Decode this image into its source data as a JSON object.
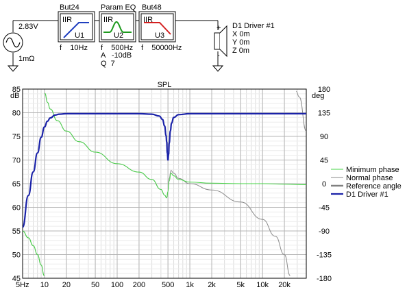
{
  "schematic": {
    "source": {
      "voltage": "2.83V",
      "resistance": "1mΩ"
    },
    "blocks": [
      {
        "title": "But24",
        "type": "IIR",
        "ref": "U1",
        "params": [
          "f    10Hz"
        ],
        "curve_color": "#1f3fbf",
        "shape": "highpass"
      },
      {
        "title": "Param EQ",
        "type": "IIR",
        "ref": "U2",
        "params": [
          "f    500Hz",
          "A   -10dB",
          "Q  7"
        ],
        "curve_color": "#1e9a1e",
        "shape": "peak"
      },
      {
        "title": "But48",
        "type": "IIR",
        "ref": "U3",
        "params": [
          "f    50000Hz"
        ],
        "curve_color": "#d42020",
        "shape": "lowpass"
      }
    ],
    "driver": {
      "name": "D1 Driver #1",
      "coords": [
        "X 0m",
        "Y 0m",
        "Z 0m"
      ],
      "plus": "+",
      "minus": "-"
    }
  },
  "chart_data": {
    "type": "line",
    "title": "SPL",
    "ylabel_left": "dB",
    "ylabel_right": "deg",
    "xscale": "log",
    "xlim": [
      5,
      40000
    ],
    "ylim_left": [
      45,
      85
    ],
    "ylim_right": [
      -180,
      180
    ],
    "x_ticks": [
      {
        "v": 5,
        "label": "5Hz"
      },
      {
        "v": 10,
        "label": "10"
      },
      {
        "v": 20,
        "label": "20"
      },
      {
        "v": 50,
        "label": "50"
      },
      {
        "v": 100,
        "label": "100"
      },
      {
        "v": 200,
        "label": "200"
      },
      {
        "v": 500,
        "label": "500"
      },
      {
        "v": 1000,
        "label": "1k"
      },
      {
        "v": 2000,
        "label": "2k"
      },
      {
        "v": 5000,
        "label": "5k"
      },
      {
        "v": 10000,
        "label": "10k"
      },
      {
        "v": 20000,
        "label": "20k"
      }
    ],
    "y_ticks_left": [
      85,
      80,
      75,
      70,
      65,
      60,
      55,
      50,
      45
    ],
    "y_ticks_right": [
      180,
      135,
      90,
      45,
      0,
      -45,
      -90,
      -135,
      -180
    ],
    "grid": true,
    "legend_position": "right",
    "series": [
      {
        "name": "Minimum phase",
        "axis": "right",
        "color": "#44d444",
        "width": 1,
        "x": [
          5,
          6,
          7,
          8,
          9,
          9.9,
          10.1,
          11,
          12,
          15,
          20,
          30,
          50,
          100,
          200,
          300,
          400,
          450,
          480,
          500,
          520,
          550,
          600,
          700,
          1000,
          2000,
          5000,
          10000,
          20000,
          40000
        ],
        "y": [
          -90,
          -103,
          -118,
          -135,
          -155,
          -175,
          172,
          155,
          142,
          120,
          100,
          80,
          60,
          38,
          22,
          8,
          -11,
          -22,
          -27,
          -15,
          5,
          20,
          15,
          8,
          3,
          1,
          0,
          0,
          -1,
          -2
        ]
      },
      {
        "name": "Normal phase",
        "axis": "right",
        "color": "#8a8a8a",
        "width": 1,
        "x": [
          5,
          6,
          7,
          8,
          9,
          9.9,
          10.1,
          11,
          12,
          15,
          20,
          30,
          50,
          100,
          200,
          300,
          400,
          450,
          480,
          500,
          520,
          550,
          600,
          700,
          1000,
          2000,
          5000,
          10000,
          15000,
          20000,
          24000,
          29000,
          32000,
          40000
        ],
        "y": [
          -90,
          -103,
          -118,
          -135,
          -155,
          -175,
          172,
          155,
          142,
          120,
          100,
          80,
          60,
          38,
          22,
          8,
          -11,
          -22,
          -27,
          -15,
          10,
          25,
          20,
          10,
          0,
          -12,
          -35,
          -68,
          -100,
          -135,
          -175,
          176,
          165,
          100
        ]
      },
      {
        "name": "Reference angle",
        "axis": "right",
        "color": "#808080",
        "width": 2.5,
        "x": [],
        "y": []
      },
      {
        "name": "D1 Driver #1",
        "axis": "left",
        "color": "#1a22a8",
        "width": 2.2,
        "x": [
          5,
          6,
          7,
          8,
          9,
          10,
          11,
          12,
          14,
          16,
          20,
          30,
          50,
          100,
          200,
          300,
          380,
          420,
          450,
          470,
          480,
          490,
          500,
          510,
          520,
          540,
          560,
          600,
          700,
          1000,
          2000,
          5000,
          10000,
          20000,
          30000,
          40000
        ],
        "y": [
          55.8,
          62.5,
          67.5,
          71.5,
          74.8,
          77,
          78.2,
          78.9,
          79.5,
          79.7,
          79.8,
          79.8,
          79.8,
          79.8,
          79.8,
          79.7,
          79.3,
          78.6,
          77.2,
          75.2,
          73.8,
          71.5,
          70,
          71.2,
          73.5,
          76.2,
          77.8,
          79,
          79.6,
          79.8,
          79.8,
          79.8,
          79.8,
          79.8,
          79.8,
          79.8
        ]
      }
    ]
  }
}
